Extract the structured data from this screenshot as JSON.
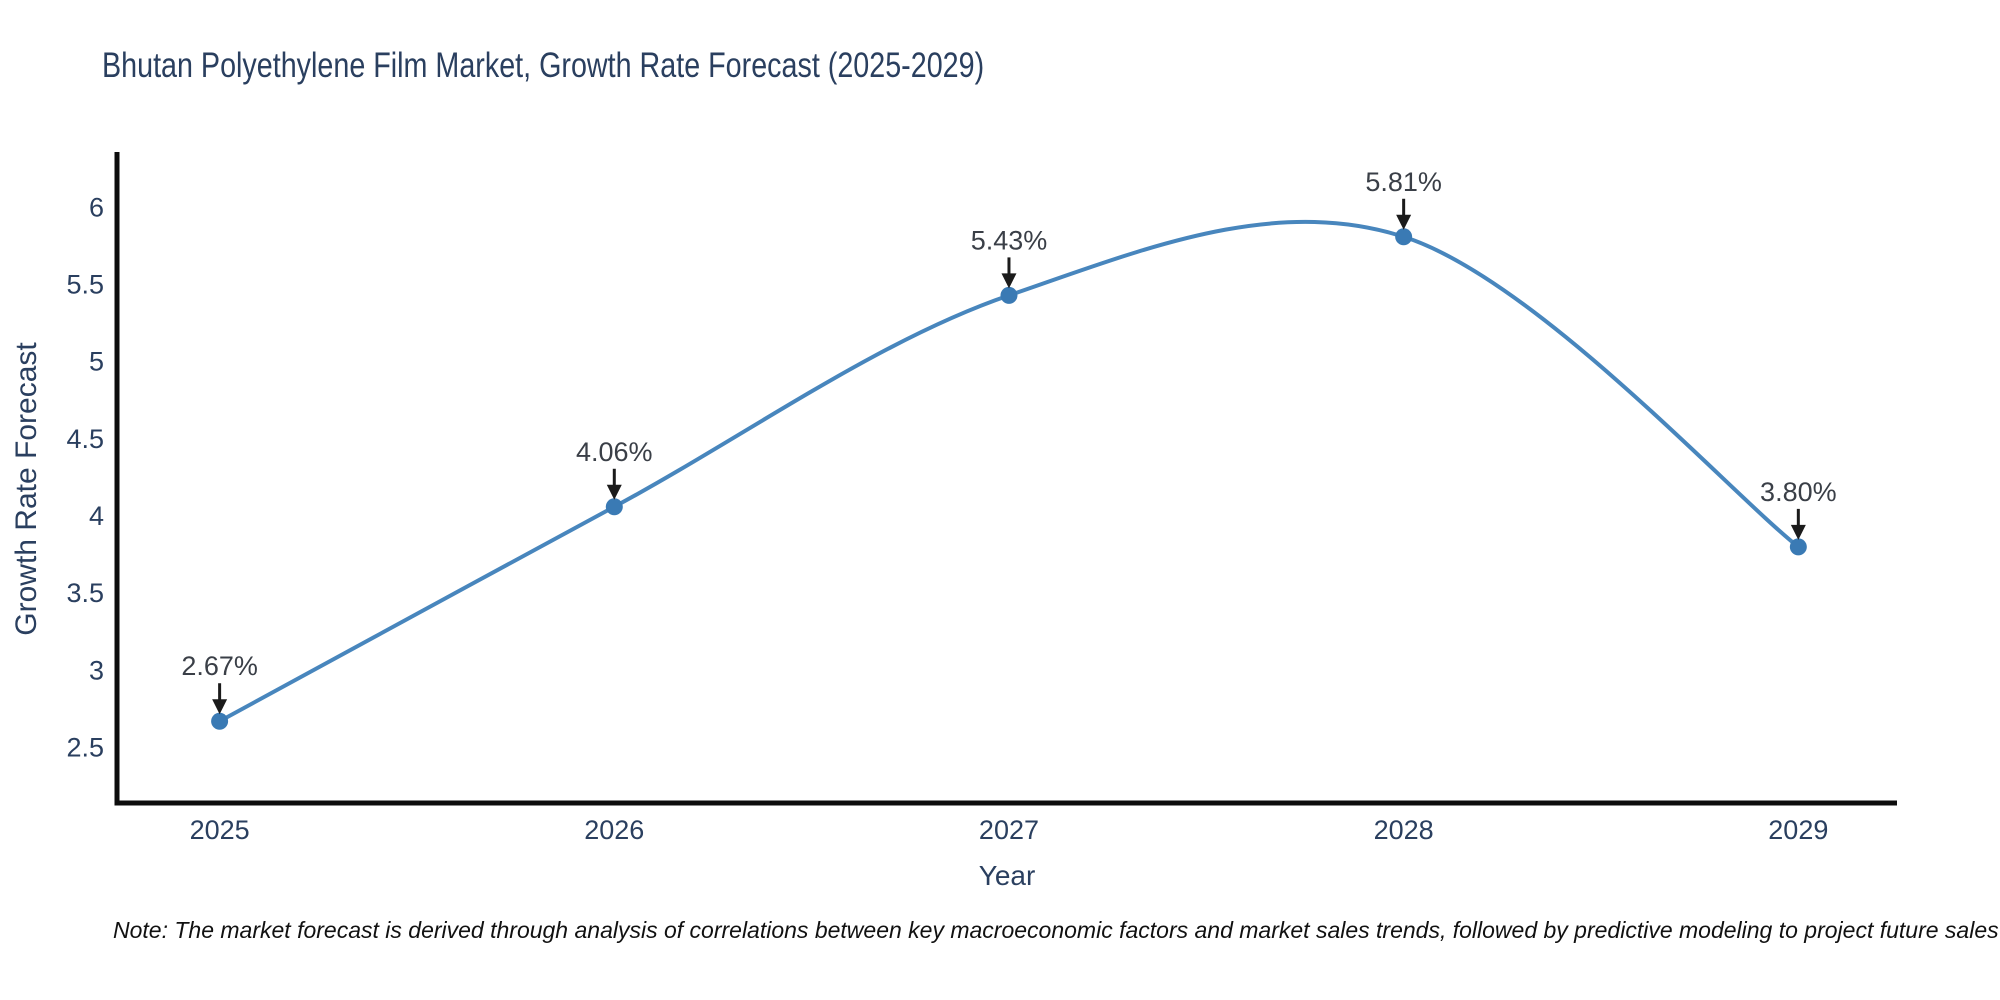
{
  "title": "Bhutan Polyethylene Film Market, Growth Rate Forecast (2025-2029)",
  "note": "Note: The market forecast is derived through analysis of correlations between key macroeconomic factors and market sales trends, followed by predictive modeling to project future sales",
  "chart_data": {
    "type": "line",
    "x": [
      2025,
      2026,
      2027,
      2028,
      2029
    ],
    "y": [
      2.67,
      4.06,
      5.43,
      5.81,
      3.8
    ],
    "point_labels": [
      "2.67%",
      "4.06%",
      "5.43%",
      "5.81%",
      "3.80%"
    ],
    "title": "Bhutan Polyethylene Film Market, Growth Rate Forecast (2025-2029)",
    "xlabel": "Year",
    "ylabel": "Growth Rate Forecast",
    "x_ticks": [
      2025,
      2026,
      2027,
      2028,
      2029
    ],
    "y_ticks": [
      2.5,
      3,
      3.5,
      4,
      4.5,
      5,
      5.5,
      6
    ],
    "xlim": [
      2024.74,
      2029.25
    ],
    "ylim": [
      2.14,
      6.34
    ],
    "smooth": true,
    "grid": false,
    "legend": false,
    "line_color": "#4886bd",
    "marker_color": "#3a7ab4",
    "axis_color": "#0d0d0d",
    "text_color": "#2a3f5f",
    "annotation_color": "#3a3f47"
  }
}
